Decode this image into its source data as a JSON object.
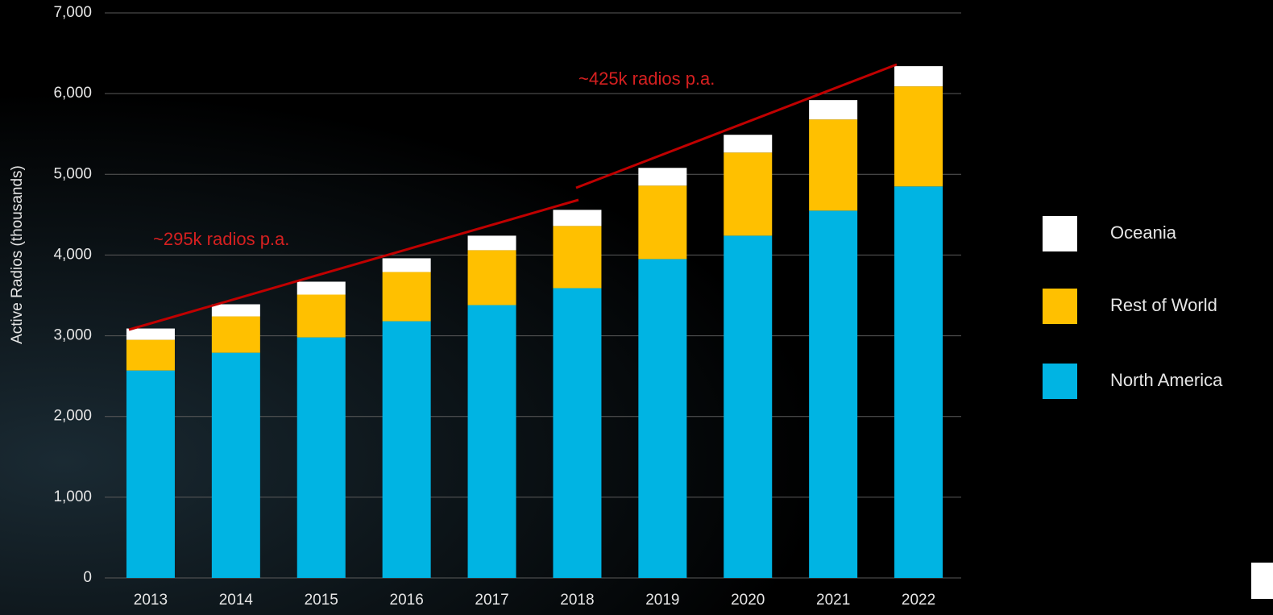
{
  "chart_data": {
    "type": "stacked_bar",
    "y_axis_label": "Active Radios (thousands)",
    "categories": [
      "2013",
      "2014",
      "2015",
      "2016",
      "2017",
      "2018",
      "2019",
      "2020",
      "2021",
      "2022"
    ],
    "series": [
      {
        "name": "North America",
        "color": "#00b4e3",
        "values": [
          2570,
          2790,
          2980,
          3180,
          3380,
          3590,
          3950,
          4240,
          4550,
          4850
        ]
      },
      {
        "name": "Rest of World",
        "color": "#ffc000",
        "values": [
          380,
          450,
          530,
          610,
          680,
          770,
          910,
          1030,
          1130,
          1240
        ]
      },
      {
        "name": "Oceania",
        "color": "#ffffff",
        "values": [
          140,
          150,
          160,
          170,
          180,
          200,
          220,
          220,
          240,
          250
        ]
      }
    ],
    "ylim": [
      0,
      7000
    ],
    "yticks": [
      0,
      {
        "value": 1000,
        "label": "1,000"
      },
      {
        "value": 2000,
        "label": "2,000"
      },
      {
        "value": 3000,
        "label": "3,000"
      },
      {
        "value": 4000,
        "label": "4,000"
      },
      {
        "value": 5000,
        "label": "5,000"
      },
      {
        "value": 6000,
        "label": "6,000"
      },
      {
        "value": 7000,
        "label": "7,000"
      }
    ],
    "grid": true,
    "annotations": [
      "~295k radios p.a.",
      "~425k radios p.a."
    ]
  }
}
